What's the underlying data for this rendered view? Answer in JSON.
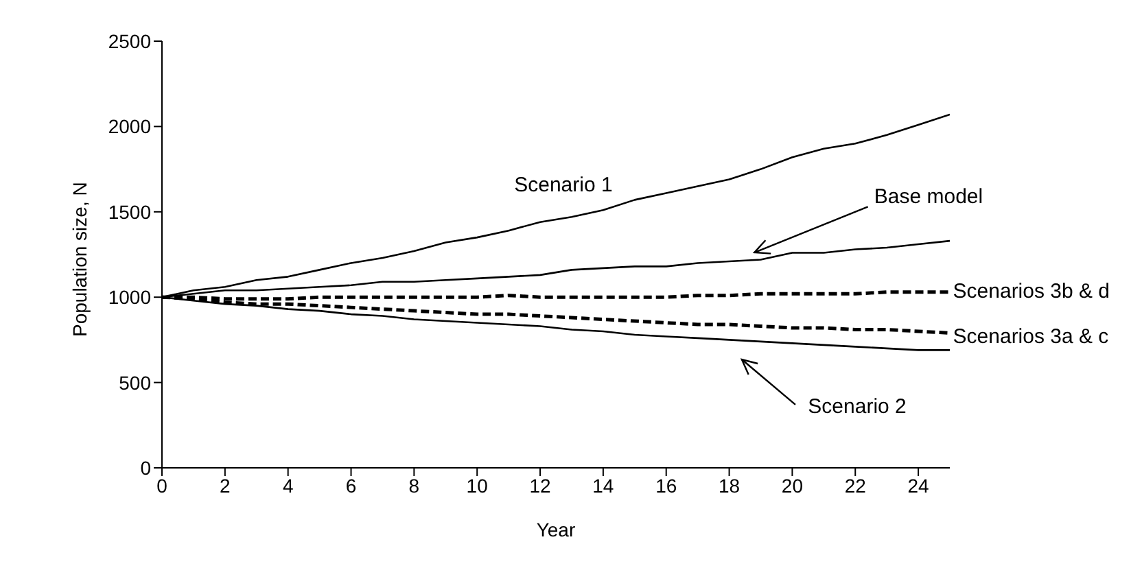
{
  "chart_data": {
    "type": "line",
    "xlabel": "Year",
    "ylabel": "Population size, N",
    "x": [
      0,
      1,
      2,
      3,
      4,
      5,
      6,
      7,
      8,
      9,
      10,
      11,
      12,
      13,
      14,
      15,
      16,
      17,
      18,
      19,
      20,
      21,
      22,
      23,
      24,
      25
    ],
    "series": [
      {
        "name": "Scenario 1",
        "color": "#000000",
        "line_style": "solid",
        "values": [
          1000,
          1040,
          1060,
          1100,
          1120,
          1160,
          1200,
          1230,
          1270,
          1320,
          1350,
          1390,
          1440,
          1470,
          1510,
          1570,
          1610,
          1650,
          1690,
          1750,
          1820,
          1870,
          1900,
          1950,
          2010,
          2070
        ]
      },
      {
        "name": "Base model",
        "color": "#000000",
        "line_style": "solid",
        "values": [
          1000,
          1020,
          1040,
          1040,
          1050,
          1060,
          1070,
          1090,
          1090,
          1100,
          1110,
          1120,
          1130,
          1160,
          1170,
          1180,
          1180,
          1200,
          1210,
          1220,
          1260,
          1260,
          1280,
          1290,
          1310,
          1330
        ]
      },
      {
        "name": "Scenarios 3b & d",
        "color": "#000000",
        "line_style": "dashed",
        "values": [
          1000,
          1000,
          990,
          990,
          990,
          1000,
          1000,
          1000,
          1000,
          1000,
          1000,
          1010,
          1000,
          1000,
          1000,
          1000,
          1000,
          1010,
          1010,
          1020,
          1020,
          1020,
          1020,
          1030,
          1030,
          1030
        ]
      },
      {
        "name": "Scenarios 3a & c",
        "color": "#000000",
        "line_style": "dashed",
        "values": [
          1000,
          990,
          970,
          960,
          960,
          950,
          940,
          930,
          920,
          910,
          900,
          900,
          890,
          880,
          870,
          860,
          850,
          840,
          840,
          830,
          820,
          820,
          810,
          810,
          800,
          790
        ]
      },
      {
        "name": "Scenario 2",
        "color": "#000000",
        "line_style": "solid",
        "values": [
          1000,
          980,
          960,
          950,
          930,
          920,
          900,
          890,
          870,
          860,
          850,
          840,
          830,
          810,
          800,
          780,
          770,
          760,
          750,
          740,
          730,
          720,
          710,
          700,
          690,
          690
        ]
      }
    ],
    "xlim": [
      0,
      25
    ],
    "xticks": [
      0,
      2,
      4,
      6,
      8,
      10,
      12,
      14,
      16,
      18,
      20,
      22,
      24
    ],
    "ylim": [
      0,
      2500
    ],
    "yticks": [
      0,
      500,
      1000,
      1500,
      2000,
      2500
    ],
    "grid": false,
    "legend": false,
    "marker": "none"
  }
}
